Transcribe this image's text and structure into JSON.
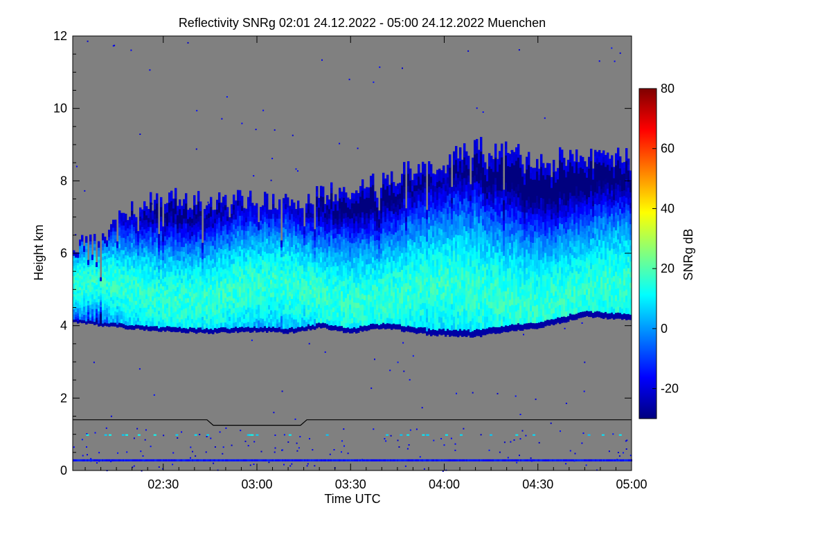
{
  "colors": {
    "background": "#ffffff",
    "plot_background": "#808080",
    "axis": "#000000",
    "colormap_stops": [
      "#00007f",
      "#0000ff",
      "#0080ff",
      "#00ffff",
      "#80ff80",
      "#ffff00",
      "#ff8000",
      "#ff0000",
      "#7f0000"
    ]
  },
  "chart_data": {
    "type": "heatmap",
    "title": "Reflectivity SNRg   02:01 24.12.2022 - 05:00 24.12.2022 Muenchen",
    "xlabel": "Time UTC",
    "ylabel": "Height km",
    "xlim": [
      "02:01",
      "05:00"
    ],
    "ylim": [
      0,
      12
    ],
    "x_ticks": [
      "02:30",
      "03:00",
      "03:30",
      "04:00",
      "04:30",
      "05:00"
    ],
    "y_ticks": [
      "0",
      "2",
      "4",
      "6",
      "8",
      "10",
      "12"
    ],
    "colorbar": {
      "label": "SNRg dB",
      "range": [
        -30,
        80
      ],
      "ticks": [
        "-20",
        "0",
        "20",
        "40",
        "60",
        "80"
      ]
    },
    "cloud_layer": {
      "base_km": [
        {
          "t": "02:01",
          "h": 4.1
        },
        {
          "t": "02:15",
          "h": 3.95
        },
        {
          "t": "02:30",
          "h": 3.85
        },
        {
          "t": "02:45",
          "h": 3.8
        },
        {
          "t": "03:00",
          "h": 3.85
        },
        {
          "t": "03:10",
          "h": 3.8
        },
        {
          "t": "03:20",
          "h": 3.95
        },
        {
          "t": "03:30",
          "h": 3.8
        },
        {
          "t": "03:40",
          "h": 3.95
        },
        {
          "t": "03:55",
          "h": 3.75
        },
        {
          "t": "04:10",
          "h": 3.7
        },
        {
          "t": "04:20",
          "h": 3.85
        },
        {
          "t": "04:30",
          "h": 3.95
        },
        {
          "t": "04:45",
          "h": 4.25
        },
        {
          "t": "05:00",
          "h": 4.15
        }
      ],
      "top_km": [
        {
          "t": "02:01",
          "h": 6.2
        },
        {
          "t": "02:10",
          "h": 6.5
        },
        {
          "t": "02:20",
          "h": 7.3
        },
        {
          "t": "02:30",
          "h": 7.6
        },
        {
          "t": "02:45",
          "h": 7.4
        },
        {
          "t": "03:00",
          "h": 7.5
        },
        {
          "t": "03:15",
          "h": 7.5
        },
        {
          "t": "03:30",
          "h": 7.8
        },
        {
          "t": "03:45",
          "h": 8.2
        },
        {
          "t": "04:00",
          "h": 8.5
        },
        {
          "t": "04:10",
          "h": 9.0
        },
        {
          "t": "04:20",
          "h": 8.8
        },
        {
          "t": "04:30",
          "h": 8.6
        },
        {
          "t": "04:45",
          "h": 8.7
        },
        {
          "t": "05:00",
          "h": 8.6
        }
      ],
      "core_km": 5.0,
      "peak_snr_db": 22
    },
    "boundary_line_km": [
      {
        "t": "02:01",
        "h": 1.4
      },
      {
        "t": "02:44",
        "h": 1.4
      },
      {
        "t": "02:46",
        "h": 1.25
      },
      {
        "t": "03:14",
        "h": 1.25
      },
      {
        "t": "03:16",
        "h": 1.4
      },
      {
        "t": "05:00",
        "h": 1.4
      }
    ],
    "clutter_band_km": 0.25
  }
}
